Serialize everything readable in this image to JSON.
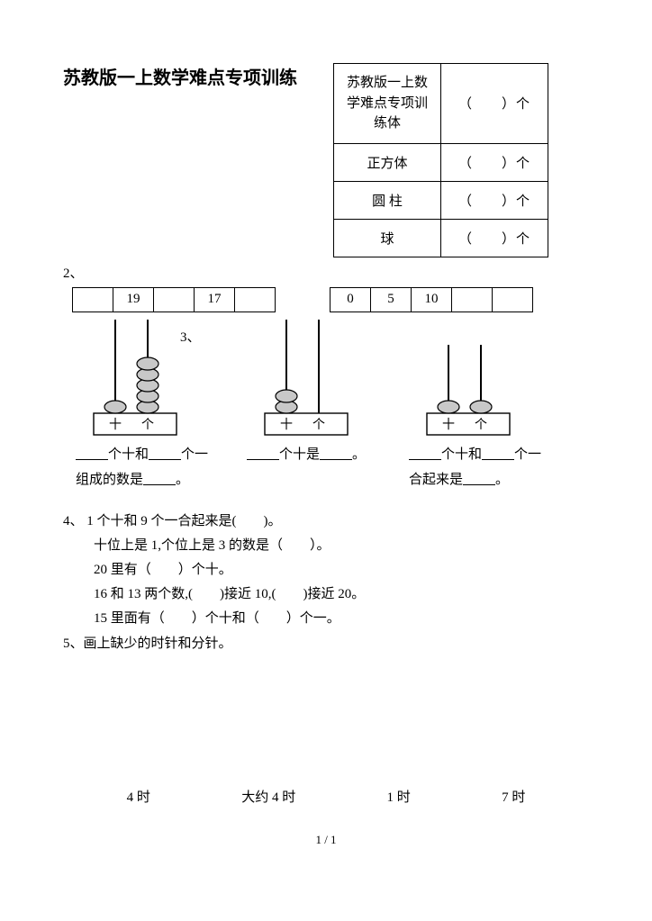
{
  "title": "苏教版一上数学难点专项训练",
  "shapeTable": {
    "rows": [
      {
        "label": "苏教版一上数学难点专项训练体",
        "count": "（　　）个"
      },
      {
        "label": "正方体",
        "count": "（　　）个"
      },
      {
        "label": "圆 柱",
        "count": "（　　）个"
      },
      {
        "label": "球",
        "count": "（　　）个"
      }
    ]
  },
  "q2": {
    "label": "2、",
    "seqA": [
      "",
      "19",
      "",
      "17",
      ""
    ],
    "seqB": [
      "0",
      "5",
      "10",
      "",
      ""
    ]
  },
  "q3": {
    "label": "3、"
  },
  "abacus": {
    "rodColor": "#000000",
    "beadFill": "#c8c8c8",
    "beadStroke": "#000000",
    "baseStroke": "#000000",
    "baseFill": "#ffffff",
    "a": {
      "tensBeads": 1,
      "onesBeads": 5,
      "tensLabel": "十",
      "onesLabel": "个"
    },
    "b": {
      "tensBeads": 2,
      "onesBeads": 0,
      "tensLabel": "十",
      "onesLabel": "个"
    },
    "c": {
      "tensBeads": 1,
      "onesBeads": 1,
      "tensLabel": "十",
      "onesLabel": "个"
    }
  },
  "fill": {
    "a1": "个十和",
    "a2": "个一",
    "a3": "组成的数是",
    "a4": "。",
    "b1": "个十是",
    "b2": "。",
    "c1": "个十和",
    "c2": "个一",
    "c3": "合起来是",
    "c4": "。"
  },
  "q4": {
    "head": "4、  1 个十和 9 个一合起来是(　　)。",
    "l2": "十位上是 1,个位上是 3 的数是（　　）。",
    "l3": "20 里有（　　）个十。",
    "l4": "16 和 13 两个数,(　　)接近 10,(　　)接近 20。",
    "l5": "15 里面有（　　）个十和（　　）个一。"
  },
  "q5": {
    "label": "5、画上缺少的时针和分针。"
  },
  "clocks": [
    "4 时",
    "大约 4 时",
    "1 时",
    "7 时"
  ],
  "footer": "1 / 1"
}
